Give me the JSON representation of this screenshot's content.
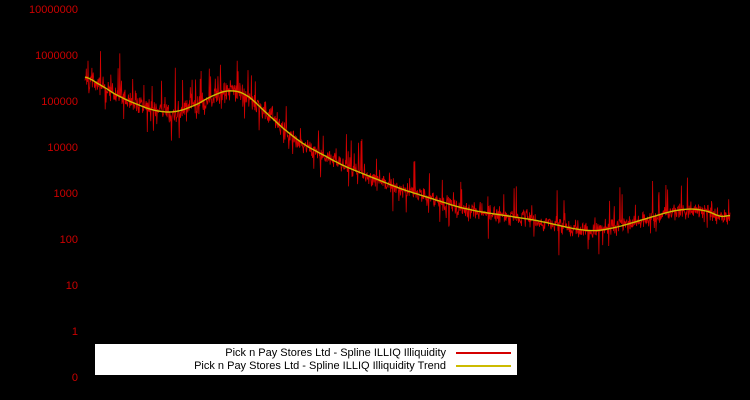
{
  "colors": {
    "background": "#000000",
    "axis_label": "#cc0000",
    "legend_background": "#ffffff",
    "legend_text": "#000000"
  },
  "chart_data": {
    "type": "line",
    "title": "",
    "xlabel": "",
    "ylabel": "",
    "y_scale": "log10",
    "grid": false,
    "legend_position": "bottom-center-inside",
    "y_axis": {
      "tick_labels": [
        "10000000",
        "1000000",
        "100000",
        "10000",
        "1000",
        "100",
        "10",
        "1",
        "0"
      ],
      "log10_range": [
        -1,
        7
      ]
    },
    "x_axis": {
      "tick_labels": []
    },
    "series": [
      {
        "name": "Pick n Pay Stores Ltd - Spline ILLIQ Illiquidity",
        "color": "#d40000",
        "style": "noisy-line",
        "description": "Daily ILLIQ illiquidity values: heavy log-normal jitter (~±0.3 decades) around the trend, with upward spikes reaching ~700000 at the start and ~3000000 near the x≈0.22 hump, settling to oscillate around 100–1000 in the right half"
      },
      {
        "name": "Pick n Pay Stores Ltd - Spline ILLIQ Illiquidity Trend",
        "color": "#ccbb00",
        "style": "smooth-spline",
        "anchors_x_fraction_value": [
          [
            0.0,
            350000
          ],
          [
            0.02,
            250000
          ],
          [
            0.05,
            140000
          ],
          [
            0.08,
            90000
          ],
          [
            0.11,
            65000
          ],
          [
            0.14,
            62000
          ],
          [
            0.17,
            85000
          ],
          [
            0.2,
            140000
          ],
          [
            0.225,
            175000
          ],
          [
            0.25,
            140000
          ],
          [
            0.28,
            60000
          ],
          [
            0.31,
            25000
          ],
          [
            0.34,
            12000
          ],
          [
            0.37,
            7000
          ],
          [
            0.4,
            4200
          ],
          [
            0.43,
            2800
          ],
          [
            0.46,
            1900
          ],
          [
            0.49,
            1300
          ],
          [
            0.52,
            950
          ],
          [
            0.55,
            700
          ],
          [
            0.58,
            520
          ],
          [
            0.61,
            420
          ],
          [
            0.64,
            360
          ],
          [
            0.67,
            310
          ],
          [
            0.7,
            265
          ],
          [
            0.73,
            215
          ],
          [
            0.76,
            175
          ],
          [
            0.79,
            160
          ],
          [
            0.82,
            185
          ],
          [
            0.85,
            240
          ],
          [
            0.88,
            320
          ],
          [
            0.91,
            420
          ],
          [
            0.94,
            470
          ],
          [
            0.965,
            420
          ],
          [
            0.985,
            330
          ],
          [
            1.0,
            340
          ]
        ]
      }
    ]
  }
}
